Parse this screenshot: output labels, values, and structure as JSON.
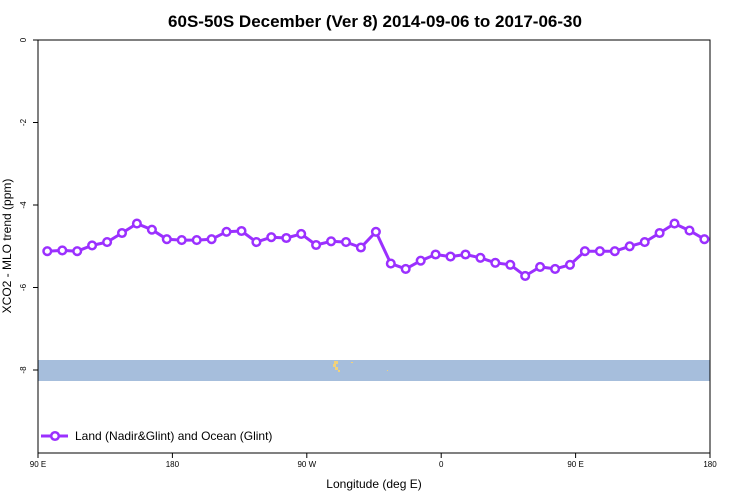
{
  "chart_data": {
    "type": "line",
    "title": "60S-50S December (Ver 8)   2014-09-06 to 2017-06-30",
    "xlabel": "Longitude (deg E)",
    "ylabel": "XCO2 - MLO trend (ppm)",
    "x_ticks": [
      "90 E",
      "180",
      "90 W",
      "0",
      "90 E",
      "180"
    ],
    "y_ticks": [
      "0",
      "-2",
      "-4",
      "-6",
      "-8"
    ],
    "xlim": [
      90,
      450
    ],
    "ylim": [
      -10,
      0
    ],
    "grid": false,
    "legend_position": "bottom-left",
    "series": [
      {
        "name": "Land (Nadir&Glint) and Ocean (Glint)",
        "color": "#9b30ff",
        "x": [
          95,
          103,
          111,
          119,
          127,
          135,
          143,
          151,
          159,
          167,
          175,
          183,
          191,
          199,
          207,
          215,
          223,
          231,
          239,
          247,
          255,
          263,
          271,
          279,
          287,
          295,
          303,
          311,
          319,
          327,
          335,
          343,
          351,
          359,
          367,
          375,
          383,
          391,
          399,
          407,
          415,
          423,
          431,
          439,
          447
        ],
        "y": [
          -5.12,
          -5.1,
          -5.12,
          -4.98,
          -4.9,
          -4.68,
          -4.45,
          -4.6,
          -4.83,
          -4.85,
          -4.85,
          -4.83,
          -4.65,
          -4.63,
          -4.9,
          -4.78,
          -4.8,
          -4.7,
          -4.97,
          -4.88,
          -4.9,
          -5.03,
          -4.65,
          -5.42,
          -5.55,
          -5.35,
          -5.2,
          -5.25,
          -5.2,
          -5.28,
          -5.4,
          -5.45,
          -5.72,
          -5.5,
          -5.55,
          -5.45,
          -5.12,
          -5.12,
          -5.12,
          -5.0,
          -4.9,
          -4.68,
          -4.45,
          -4.62,
          -4.83
        ]
      }
    ]
  },
  "colors": {
    "map_band": "#a6bedc",
    "land": "#f2d27a"
  }
}
